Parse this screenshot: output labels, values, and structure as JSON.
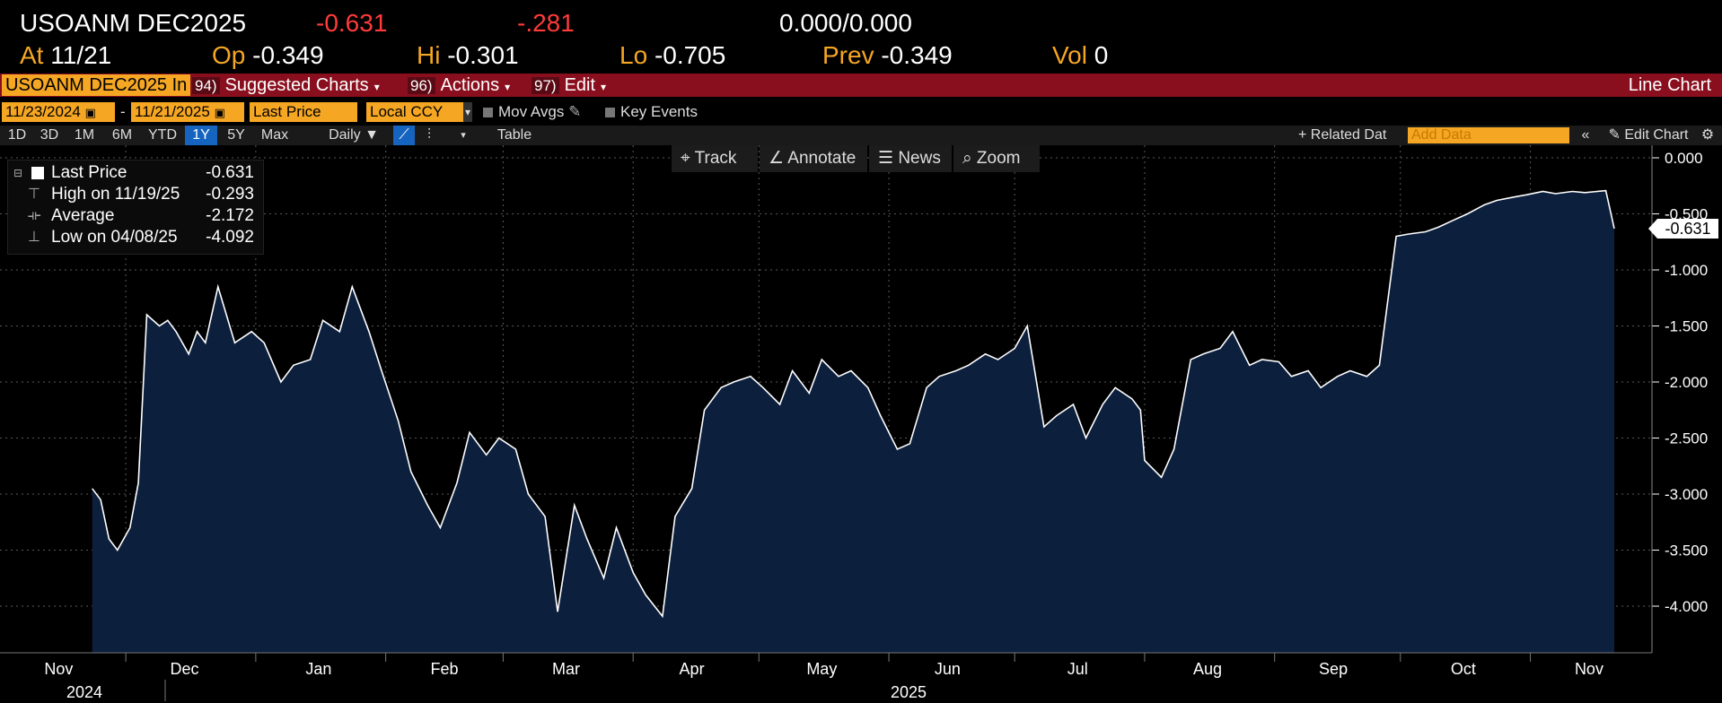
{
  "quote": {
    "ticker": "USOANM DEC2025",
    "last": "-0.631",
    "change": "-.281",
    "bid": "0.000",
    "ask_sep": "/",
    "ask": "0.000",
    "at_label": "At",
    "at_value": "11/21",
    "op_label": "Op",
    "op_value": "-0.349",
    "hi_label": "Hi",
    "hi_value": "-0.301",
    "lo_label": "Lo",
    "lo_value": "-0.705",
    "prev_label": "Prev",
    "prev_value": "-0.349",
    "vol_label": "Vol",
    "vol_value": "0"
  },
  "menubar": {
    "security": "USOANM DEC2025 In",
    "suggested_num": "94)",
    "suggested": "Suggested Charts",
    "actions_num": "96)",
    "actions": "Actions",
    "edit_num": "97)",
    "edit": "Edit",
    "chart_type": "Line Chart"
  },
  "options": {
    "start_date": "11/23/2024",
    "date_sep": "-",
    "end_date": "11/21/2025",
    "field": "Last Price",
    "currency": "Local CCY",
    "mov_avgs": "Mov Avgs",
    "key_events": "Key Events"
  },
  "periods": [
    "1D",
    "3D",
    "1M",
    "6M",
    "YTD",
    "1Y",
    "5Y",
    "Max"
  ],
  "active_period": "1Y",
  "period_bar": {
    "frequency": "Daily",
    "table": "Table",
    "related": "+ Related Dat",
    "add_data_placeholder": "Add Data",
    "edit_chart": "Edit Chart"
  },
  "toolbar": {
    "track": "Track",
    "annotate": "Annotate",
    "news": "News",
    "zoom": "Zoom"
  },
  "legend": {
    "last_label": "Last Price",
    "last_value": "-0.631",
    "high_label": "High on 11/19/25",
    "high_value": "-0.293",
    "avg_label": "Average",
    "avg_value": "-2.172",
    "low_label": "Low on 04/08/25",
    "low_value": "-4.092"
  },
  "last_flag": "-0.631",
  "colors": {
    "background": "#000000",
    "area_fill": "#0c1f3d",
    "line": "#ffffff",
    "accent_orange": "#f5a623",
    "menubar_red": "#8a0f1e"
  },
  "chart_data": {
    "type": "area",
    "title": "",
    "xlabel": "",
    "ylabel": "",
    "ylim": [
      -4.5,
      0.0
    ],
    "yticks": [
      "0.000",
      "-0.500",
      "-1.000",
      "-1.500",
      "-2.000",
      "-2.500",
      "-3.000",
      "-3.500",
      "-4.000"
    ],
    "month_labels": [
      "Nov",
      "Dec",
      "Jan",
      "Feb",
      "Mar",
      "Apr",
      "May",
      "Jun",
      "Jul",
      "Aug",
      "Sep",
      "Oct",
      "Nov"
    ],
    "year_labels": [
      "2024",
      "2025"
    ],
    "grid": true,
    "legend_position": "top-left",
    "series": [
      {
        "name": "Last Price",
        "x": [
          "2024-11-23",
          "2024-11-25",
          "2024-11-27",
          "2024-11-29",
          "2024-12-02",
          "2024-12-04",
          "2024-12-06",
          "2024-12-09",
          "2024-12-11",
          "2024-12-13",
          "2024-12-16",
          "2024-12-18",
          "2024-12-20",
          "2024-12-23",
          "2024-12-27",
          "2024-12-31",
          "2025-01-03",
          "2025-01-07",
          "2025-01-10",
          "2025-01-14",
          "2025-01-17",
          "2025-01-21",
          "2025-01-24",
          "2025-01-28",
          "2025-01-31",
          "2025-02-04",
          "2025-02-07",
          "2025-02-11",
          "2025-02-14",
          "2025-02-18",
          "2025-02-21",
          "2025-02-25",
          "2025-02-28",
          "2025-03-04",
          "2025-03-07",
          "2025-03-11",
          "2025-03-14",
          "2025-03-18",
          "2025-03-21",
          "2025-03-25",
          "2025-03-28",
          "2025-04-01",
          "2025-04-04",
          "2025-04-08",
          "2025-04-11",
          "2025-04-15",
          "2025-04-18",
          "2025-04-22",
          "2025-04-25",
          "2025-04-29",
          "2025-05-02",
          "2025-05-06",
          "2025-05-09",
          "2025-05-13",
          "2025-05-16",
          "2025-05-20",
          "2025-05-23",
          "2025-05-27",
          "2025-05-30",
          "2025-06-03",
          "2025-06-06",
          "2025-06-10",
          "2025-06-13",
          "2025-06-17",
          "2025-06-20",
          "2025-06-24",
          "2025-06-27",
          "2025-07-01",
          "2025-07-04",
          "2025-07-08",
          "2025-07-11",
          "2025-07-15",
          "2025-07-18",
          "2025-07-22",
          "2025-07-25",
          "2025-07-29",
          "2025-07-31",
          "2025-08-01",
          "2025-08-05",
          "2025-08-08",
          "2025-08-12",
          "2025-08-15",
          "2025-08-19",
          "2025-08-22",
          "2025-08-26",
          "2025-08-29",
          "2025-09-02",
          "2025-09-05",
          "2025-09-09",
          "2025-09-12",
          "2025-09-16",
          "2025-09-19",
          "2025-09-23",
          "2025-09-26",
          "2025-09-30",
          "2025-10-03",
          "2025-10-07",
          "2025-10-10",
          "2025-10-14",
          "2025-10-17",
          "2025-10-21",
          "2025-10-24",
          "2025-10-28",
          "2025-10-31",
          "2025-11-04",
          "2025-11-07",
          "2025-11-11",
          "2025-11-14",
          "2025-11-19",
          "2025-11-21"
        ],
        "y": [
          -2.95,
          -3.05,
          -3.4,
          -3.5,
          -3.3,
          -2.9,
          -1.4,
          -1.5,
          -1.45,
          -1.55,
          -1.75,
          -1.55,
          -1.65,
          -1.15,
          -1.65,
          -1.55,
          -1.65,
          -2.0,
          -1.85,
          -1.8,
          -1.45,
          -1.55,
          -1.15,
          -1.55,
          -1.9,
          -2.35,
          -2.8,
          -3.1,
          -3.3,
          -2.9,
          -2.45,
          -2.65,
          -2.5,
          -2.6,
          -3.0,
          -3.2,
          -4.05,
          -3.1,
          -3.4,
          -3.75,
          -3.3,
          -3.7,
          -3.9,
          -4.09,
          -3.2,
          -2.95,
          -2.25,
          -2.05,
          -2.0,
          -1.95,
          -2.05,
          -2.2,
          -1.9,
          -2.1,
          -1.8,
          -1.95,
          -1.9,
          -2.05,
          -2.3,
          -2.6,
          -2.55,
          -2.05,
          -1.95,
          -1.9,
          -1.85,
          -1.75,
          -1.8,
          -1.7,
          -1.5,
          -2.4,
          -2.3,
          -2.2,
          -2.5,
          -2.2,
          -2.05,
          -2.15,
          -2.25,
          -2.7,
          -2.85,
          -2.6,
          -1.8,
          -1.75,
          -1.7,
          -1.55,
          -1.85,
          -1.8,
          -1.82,
          -1.95,
          -1.9,
          -2.05,
          -1.95,
          -1.9,
          -1.95,
          -1.85,
          -0.7,
          -0.68,
          -0.66,
          -0.62,
          -0.55,
          -0.5,
          -0.42,
          -0.38,
          -0.35,
          -0.33,
          -0.3,
          -0.32,
          -0.3,
          -0.31,
          -0.293,
          -0.631
        ]
      }
    ]
  }
}
